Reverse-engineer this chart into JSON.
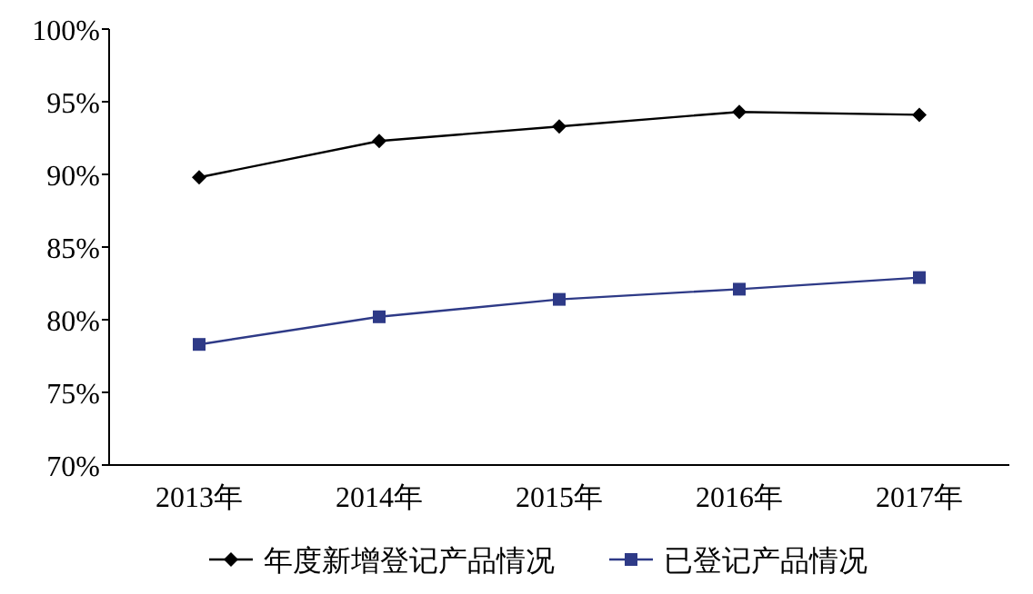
{
  "chart_data": {
    "type": "line",
    "categories": [
      "2013年",
      "2014年",
      "2015年",
      "2016年",
      "2017年"
    ],
    "series": [
      {
        "name": "年度新增登记产品情况",
        "color": "#000000",
        "marker": "diamond",
        "values": [
          89.8,
          92.3,
          93.3,
          94.3,
          94.1
        ]
      },
      {
        "name": "已登记产品情况",
        "color": "#2e3a87",
        "marker": "square",
        "values": [
          78.3,
          80.2,
          81.4,
          82.1,
          82.9
        ]
      }
    ],
    "ylim": [
      70,
      100
    ],
    "yticks": [
      {
        "value": 70,
        "label": "70%"
      },
      {
        "value": 75,
        "label": "75%"
      },
      {
        "value": 80,
        "label": "80%"
      },
      {
        "value": 85,
        "label": "85%"
      },
      {
        "value": 90,
        "label": "90%"
      },
      {
        "value": 95,
        "label": "95%"
      },
      {
        "value": 100,
        "label": "100%"
      }
    ],
    "grid": false,
    "legend": "bottom",
    "line_style": "solid"
  }
}
